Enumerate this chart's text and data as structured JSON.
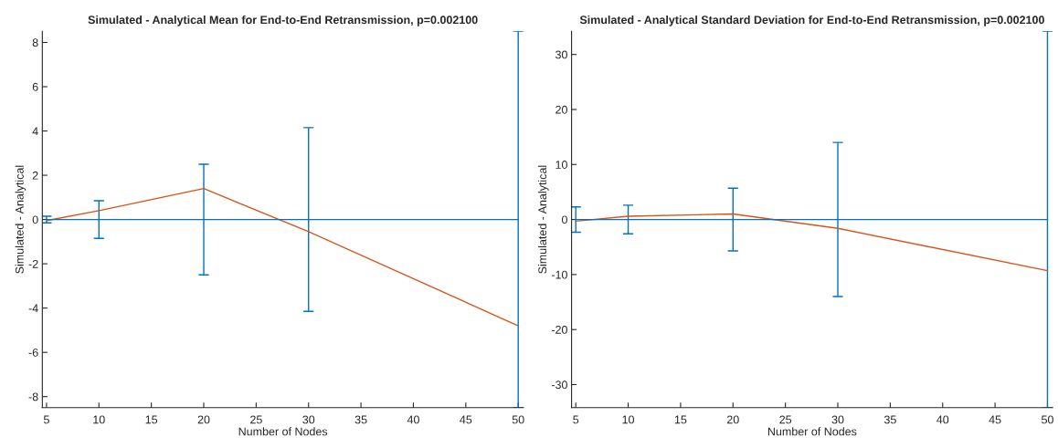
{
  "chart_data": [
    {
      "type": "line",
      "title": "Simulated - Analytical Mean for End-to-End Retransmission, p=0.002100",
      "xlabel": "Number of Nodes",
      "ylabel": "Simulated - Analytical",
      "x": [
        5,
        10,
        20,
        30,
        50
      ],
      "xlim": [
        4.6,
        50.5
      ],
      "xticks": [
        5,
        10,
        15,
        20,
        25,
        30,
        35,
        40,
        45,
        50
      ],
      "ylim": [
        -8.5,
        8.5
      ],
      "yticks": [
        -8,
        -6,
        -4,
        -2,
        0,
        2,
        4,
        6,
        8
      ],
      "grid": false,
      "legend": false,
      "series": [
        {
          "color": "#0072bd",
          "values": [
            0,
            0,
            0,
            0,
            0
          ],
          "errors": [
            0.15,
            0.85,
            2.5,
            4.15,
            8.5
          ]
        },
        {
          "color": "#d95319",
          "values": [
            -0.05,
            0.4,
            1.4,
            -0.55,
            -4.8
          ]
        }
      ]
    },
    {
      "type": "line",
      "title": "Simulated - Analytical Standard Deviation for End-to-End Retransmission, p=0.002100",
      "xlabel": "Number of Nodes",
      "ylabel": "Simulated - Analytical",
      "x": [
        5,
        10,
        20,
        30,
        50
      ],
      "xlim": [
        4.6,
        50.5
      ],
      "xticks": [
        5,
        10,
        15,
        20,
        25,
        30,
        35,
        40,
        45,
        50
      ],
      "ylim": [
        -34.2,
        34.2
      ],
      "yticks": [
        -30,
        -20,
        -10,
        0,
        10,
        20,
        30
      ],
      "grid": false,
      "legend": false,
      "series": [
        {
          "color": "#0072bd",
          "values": [
            0,
            0,
            0,
            0,
            0
          ],
          "errors": [
            2.3,
            2.6,
            5.7,
            14,
            34.2
          ]
        },
        {
          "color": "#d95319",
          "values": [
            -0.3,
            0.6,
            1.0,
            -1.6,
            -9.3
          ]
        }
      ]
    }
  ]
}
